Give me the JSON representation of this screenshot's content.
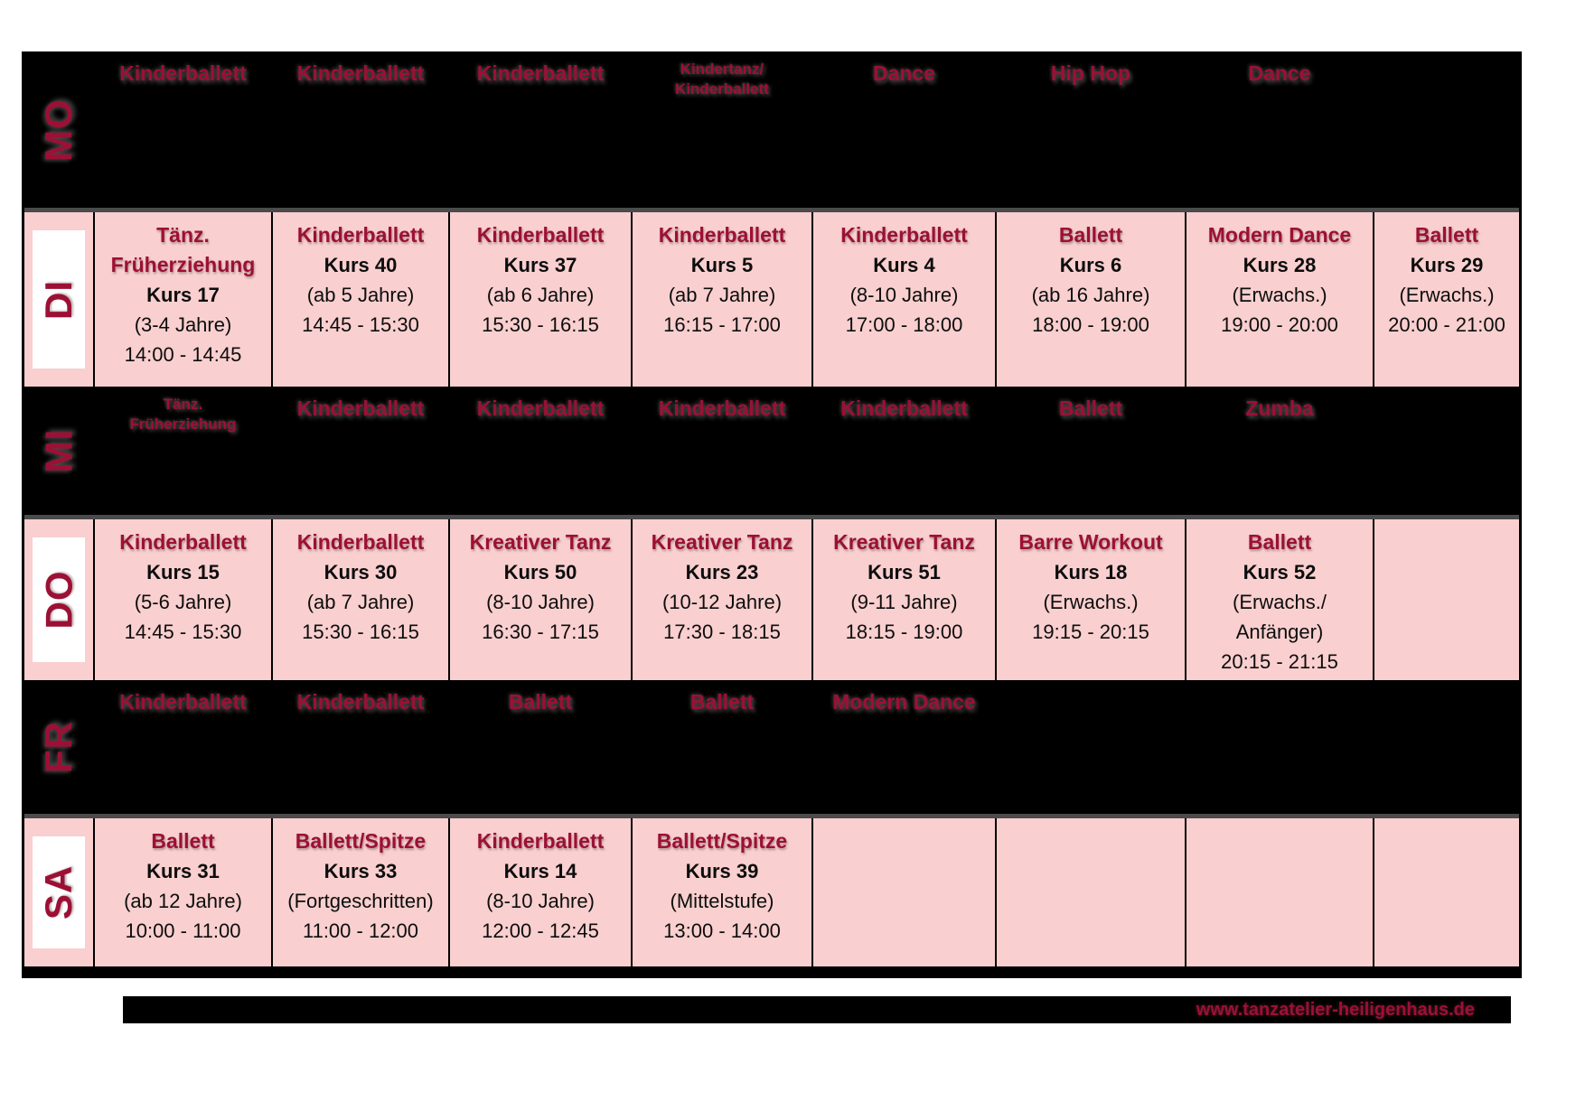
{
  "schedule": {
    "days": [
      {
        "label": "MO",
        "style": "blackout",
        "cells": [
          {
            "title": "Kinderballett"
          },
          {
            "title": "Kinderballett"
          },
          {
            "title": "Kinderballett"
          },
          {
            "title": "Kindertanz/",
            "title2": "Kinderballett"
          },
          {
            "title": "Dance"
          },
          {
            "title": "Hip Hop"
          },
          {
            "title": "Dance"
          },
          {}
        ]
      },
      {
        "label": "DI",
        "style": "pink",
        "cells": [
          {
            "title": "Tänz.",
            "title2": "Früherziehung",
            "kurs": "Kurs 17",
            "age": "(3-4 Jahre)",
            "time": "14:00 - 14:45"
          },
          {
            "title": "Kinderballett",
            "kurs": "Kurs 40",
            "age": "(ab 5 Jahre)",
            "time": "14:45 - 15:30"
          },
          {
            "title": "Kinderballett",
            "kurs": "Kurs 37",
            "age": "(ab 6 Jahre)",
            "time": "15:30 - 16:15"
          },
          {
            "title": "Kinderballett",
            "kurs": "Kurs 5",
            "age": "(ab 7 Jahre)",
            "time": "16:15 - 17:00"
          },
          {
            "title": "Kinderballett",
            "kurs": "Kurs 4",
            "age": "(8-10 Jahre)",
            "time": "17:00 - 18:00"
          },
          {
            "title": "Ballett",
            "kurs": "Kurs 6",
            "age": "(ab 16 Jahre)",
            "time": "18:00 - 19:00"
          },
          {
            "title": "Modern Dance",
            "kurs": "Kurs 28",
            "age": "(Erwachs.)",
            "time": "19:00 - 20:00"
          },
          {
            "title": "Ballett",
            "kurs": "Kurs 29",
            "age": "(Erwachs.)",
            "time": "20:00 - 21:00"
          }
        ]
      },
      {
        "label": "MI",
        "style": "blackout",
        "cells": [
          {
            "title": "Tänz.",
            "title2": "Früherziehung"
          },
          {
            "title": "Kinderballett"
          },
          {
            "title": "Kinderballett"
          },
          {
            "title": "Kinderballett"
          },
          {
            "title": "Kinderballett"
          },
          {
            "title": "Ballett"
          },
          {
            "title": "Zumba"
          },
          {}
        ]
      },
      {
        "label": "DO",
        "style": "pink",
        "cells": [
          {
            "title": "Kinderballett",
            "kurs": "Kurs 15",
            "age": "(5-6 Jahre)",
            "time": "14:45 - 15:30"
          },
          {
            "title": "Kinderballett",
            "kurs": "Kurs 30",
            "age": "(ab 7 Jahre)",
            "time": "15:30 - 16:15"
          },
          {
            "title": "Kreativer Tanz",
            "kurs": "Kurs 50",
            "age": "(8-10 Jahre)",
            "time": "16:30 - 17:15"
          },
          {
            "title": "Kreativer Tanz",
            "kurs": "Kurs 23",
            "age": "(10-12 Jahre)",
            "time": "17:30 - 18:15"
          },
          {
            "title": "Kreativer Tanz",
            "kurs": "Kurs 51",
            "age": "(9-11 Jahre)",
            "time": "18:15 - 19:00"
          },
          {
            "title": "Barre Workout",
            "kurs": "Kurs 18",
            "age": "(Erwachs.)",
            "time": "19:15 - 20:15"
          },
          {
            "title": "Ballett",
            "kurs": "Kurs 52",
            "age": "(Erwachs./",
            "age2": "Anfänger)",
            "time": "20:15 - 21:15"
          },
          {}
        ]
      },
      {
        "label": "FR",
        "style": "blackout",
        "cells": [
          {
            "title": "Kinderballett"
          },
          {
            "title": "Kinderballett"
          },
          {
            "title": "Ballett"
          },
          {
            "title": "Ballett"
          },
          {
            "title": "Modern Dance"
          },
          {},
          {},
          {}
        ]
      },
      {
        "label": "SA",
        "style": "pink",
        "cells": [
          {
            "title": "Ballett",
            "kurs": "Kurs 31",
            "age": "(ab 12 Jahre)",
            "time": "10:00 - 11:00"
          },
          {
            "title": "Ballett/Spitze",
            "kurs": "Kurs 33",
            "age": "(Fortgeschritten)",
            "time": "11:00 - 12:00"
          },
          {
            "title": "Kinderballett",
            "kurs": "Kurs 14",
            "age": "(8-10 Jahre)",
            "time": "12:00 - 12:45"
          },
          {
            "title": "Ballett/Spitze",
            "kurs": "Kurs 39",
            "age": "(Mittelstufe)",
            "time": "13:00 - 14:00"
          },
          {},
          {},
          {},
          {}
        ]
      }
    ]
  },
  "footer": {
    "website": "www.tanzatelier-heiligenhaus.de"
  },
  "colors": {
    "pink_cell": "#f9cfcf",
    "accent_red": "#9c1035",
    "blackout": "#000000"
  }
}
